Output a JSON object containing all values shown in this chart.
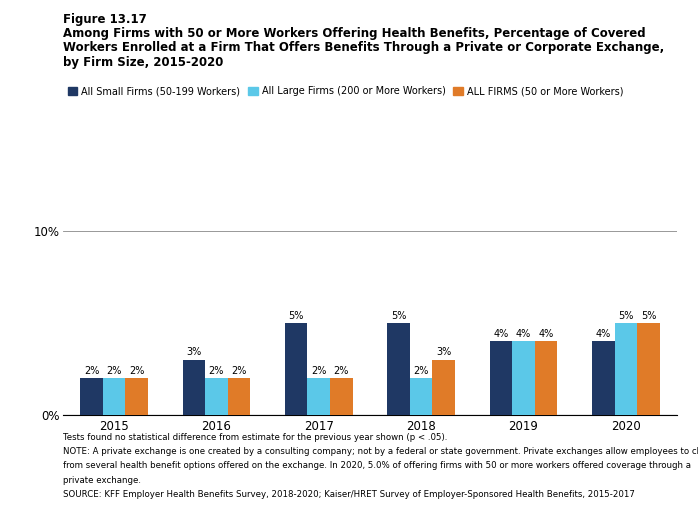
{
  "title_line1": "Figure 13.17",
  "title_line2a": "Among Firms with 50 or More Workers Offering Health Benefits, Percentage of Covered",
  "title_line2b": "Workers Enrolled at a Firm That Offers Benefits Through a Private or Corporate Exchange,",
  "title_line2c": "by Firm Size, 2015-2020",
  "years": [
    "2015",
    "2016",
    "2017",
    "2018",
    "2019",
    "2020"
  ],
  "small_firms": [
    2,
    3,
    5,
    5,
    4,
    4
  ],
  "large_firms": [
    2,
    2,
    2,
    2,
    4,
    5
  ],
  "all_firms": [
    2,
    2,
    2,
    3,
    4,
    5
  ],
  "colors": {
    "small": "#1f3864",
    "large": "#5bc8e8",
    "all": "#e07b28"
  },
  "legend_labels": [
    "All Small Firms (50-199 Workers)",
    "All Large Firms (200 or More Workers)",
    "ALL FIRMS (50 or More Workers)"
  ],
  "footer_lines": [
    "Tests found no statistical difference from estimate for the previous year shown (p < .05).",
    "NOTE: A private exchange is one created by a consulting company; not by a federal or state government. Private exchanges allow employees to choose",
    "from several health benefit options offered on the exchange. In 2020, 5.0% of offering firms with 50 or more workers offered coverage through a",
    "private exchange.",
    "SOURCE: KFF Employer Health Benefits Survey, 2018-2020; Kaiser/HRET Survey of Employer-Sponsored Health Benefits, 2015-2017"
  ],
  "bar_width": 0.22,
  "background_color": "#ffffff"
}
